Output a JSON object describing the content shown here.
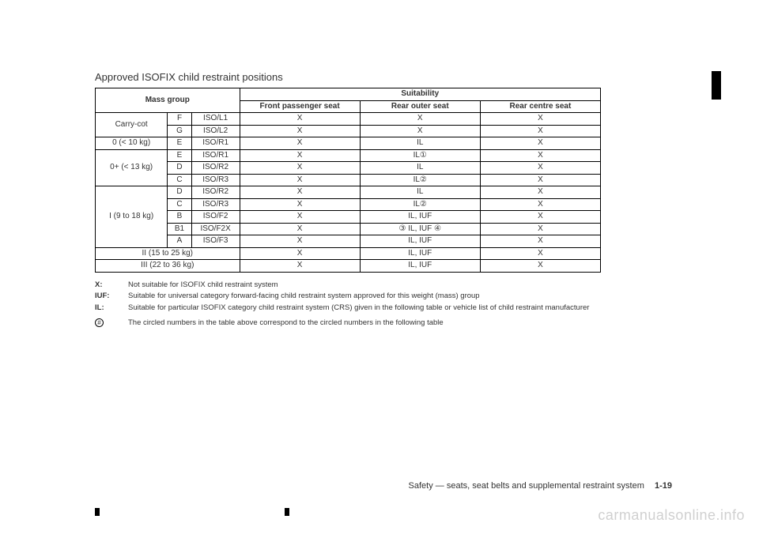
{
  "title": "Approved ISOFIX child restraint positions",
  "headers": {
    "mass_group": "Mass group",
    "suitability": "Suitability",
    "front_passenger": "Front passenger seat",
    "rear_outer": "Rear outer seat",
    "rear_centre": "Rear centre seat"
  },
  "rows": [
    {
      "mg": "Carry-cot",
      "rowspan": 2,
      "size": "F",
      "fix": "ISO/L1",
      "fp": "X",
      "ro": "X",
      "rc": "X"
    },
    {
      "size": "G",
      "fix": "ISO/L2",
      "fp": "X",
      "ro": "X",
      "rc": "X"
    },
    {
      "mg": "0 (< 10 kg)",
      "rowspan": 1,
      "size": "E",
      "fix": "ISO/R1",
      "fp": "X",
      "ro": "IL",
      "rc": "X"
    },
    {
      "mg": "0+ (< 13 kg)",
      "rowspan": 3,
      "size": "E",
      "fix": "ISO/R1",
      "fp": "X",
      "ro": "IL①",
      "rc": "X"
    },
    {
      "size": "D",
      "fix": "ISO/R2",
      "fp": "X",
      "ro": "IL",
      "rc": "X"
    },
    {
      "size": "C",
      "fix": "ISO/R3",
      "fp": "X",
      "ro": "IL②",
      "rc": "X"
    },
    {
      "mg": "I (9 to 18 kg)",
      "rowspan": 5,
      "size": "D",
      "fix": "ISO/R2",
      "fp": "X",
      "ro": "IL",
      "rc": "X"
    },
    {
      "size": "C",
      "fix": "ISO/R3",
      "fp": "X",
      "ro": "IL②",
      "rc": "X"
    },
    {
      "size": "B",
      "fix": "ISO/F2",
      "fp": "X",
      "ro": "IL, IUF",
      "rc": "X"
    },
    {
      "size": "B1",
      "fix": "ISO/F2X",
      "fp": "X",
      "ro": "③ IL, IUF ④",
      "rc": "X"
    },
    {
      "size": "A",
      "fix": "ISO/F3",
      "fp": "X",
      "ro": "IL, IUF",
      "rc": "X"
    },
    {
      "mg": "II (15 to 25 kg)",
      "colspan": 3,
      "fp": "X",
      "ro": "IL, IUF",
      "rc": "X"
    },
    {
      "mg": "III (22 to 36 kg)",
      "colspan": 3,
      "fp": "X",
      "ro": "IL, IUF",
      "rc": "X"
    }
  ],
  "notes": [
    {
      "key": "X:",
      "text": "Not suitable for ISOFIX child restraint system"
    },
    {
      "key": "IUF:",
      "text": "Suitable for universal category forward-facing child restraint system approved for this weight (mass) group"
    },
    {
      "key": "IL:",
      "text": "Suitable for particular ISOFIX category child restraint system (CRS) given in the following table or vehicle list of child restraint manufacturer"
    }
  ],
  "circled_note": {
    "symbol": "#",
    "text": "The circled numbers in the table above correspond to the circled numbers in the following table"
  },
  "footer": {
    "section": "Safety — seats, seat belts and supplemental restraint system",
    "page": "1-19"
  },
  "watermark": "carmanualsonline.info"
}
